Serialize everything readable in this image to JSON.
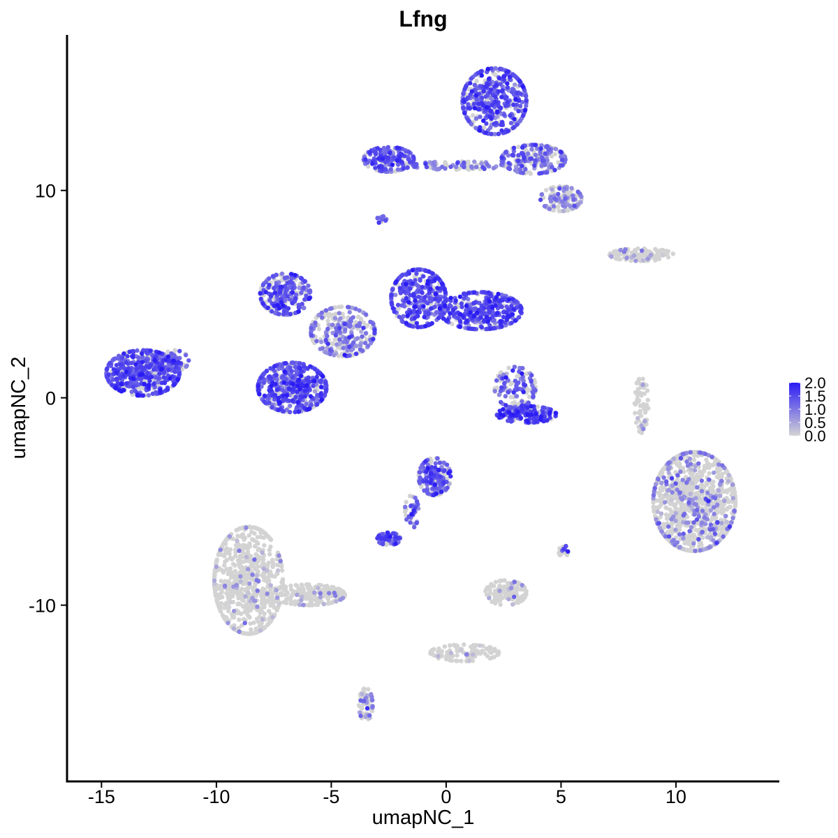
{
  "chart_data": {
    "type": "scatter",
    "title": "Lfng",
    "xlabel": "umapNC_1",
    "ylabel": "umapNC_2",
    "xlim": [
      -16.5,
      14.5
    ],
    "ylim": [
      -18.5,
      17.5
    ],
    "x_ticks": [
      -15,
      -10,
      -5,
      0,
      5,
      10
    ],
    "x_tick_labels": [
      "-15",
      "-10",
      "-5",
      "0",
      "5",
      "10"
    ],
    "y_ticks": [
      -10,
      0,
      10
    ],
    "y_tick_labels": [
      "-10",
      "0",
      "10"
    ],
    "grid": false,
    "legend": {
      "position": "right",
      "type": "colorbar",
      "range": [
        0,
        2
      ],
      "ticks": [
        0,
        0.5,
        1,
        1.5,
        2
      ],
      "tick_labels": [
        "0.0",
        "0.5",
        "1.0",
        "1.5",
        "2.0"
      ],
      "low_color": "#d3d3d3",
      "high_color": "#2b1cf5"
    },
    "clusters": [
      {
        "x": -13.2,
        "y": 1.2,
        "rx": 1.6,
        "ry": 1.1,
        "n": 520,
        "expr": 0.8
      },
      {
        "x": -11.8,
        "y": 1.8,
        "rx": 0.6,
        "ry": 0.5,
        "n": 60,
        "expr": 0.6
      },
      {
        "x": -6.7,
        "y": 0.5,
        "rx": 1.5,
        "ry": 1.2,
        "n": 520,
        "expr": 0.75
      },
      {
        "x": -7.0,
        "y": 5.0,
        "rx": 1.1,
        "ry": 1.0,
        "n": 260,
        "expr": 0.7
      },
      {
        "x": -4.5,
        "y": 3.2,
        "rx": 1.4,
        "ry": 1.2,
        "n": 280,
        "expr": 0.45
      },
      {
        "x": -1.2,
        "y": 4.8,
        "rx": 1.2,
        "ry": 1.4,
        "n": 340,
        "expr": 0.8
      },
      {
        "x": 1.5,
        "y": 4.2,
        "rx": 1.8,
        "ry": 0.9,
        "n": 380,
        "expr": 0.8
      },
      {
        "x": 3.0,
        "y": 0.5,
        "rx": 0.9,
        "ry": 1.0,
        "n": 130,
        "expr": 0.6
      },
      {
        "x": 3.5,
        "y": -0.8,
        "rx": 1.3,
        "ry": 0.4,
        "n": 150,
        "expr": 0.9
      },
      {
        "x": 2.1,
        "y": 14.3,
        "rx": 1.4,
        "ry": 1.6,
        "n": 480,
        "expr": 0.75
      },
      {
        "x": 3.8,
        "y": 11.5,
        "rx": 1.4,
        "ry": 0.7,
        "n": 220,
        "expr": 0.55
      },
      {
        "x": 5.0,
        "y": 9.6,
        "rx": 0.9,
        "ry": 0.6,
        "n": 140,
        "expr": 0.35
      },
      {
        "x": -2.5,
        "y": 11.5,
        "rx": 1.1,
        "ry": 0.6,
        "n": 180,
        "expr": 0.75
      },
      {
        "x": 0.5,
        "y": 11.2,
        "rx": 2.0,
        "ry": 0.2,
        "n": 80,
        "expr": 0.5
      },
      {
        "x": 8.5,
        "y": 6.9,
        "rx": 1.4,
        "ry": 0.3,
        "n": 130,
        "expr": 0.05
      },
      {
        "x": 10.8,
        "y": -5.0,
        "rx": 1.8,
        "ry": 2.4,
        "n": 1000,
        "expr": 0.22
      },
      {
        "x": 8.5,
        "y": -0.3,
        "rx": 0.3,
        "ry": 1.4,
        "n": 60,
        "expr": 0.05
      },
      {
        "x": -0.5,
        "y": -3.8,
        "rx": 0.7,
        "ry": 0.9,
        "n": 180,
        "expr": 0.7
      },
      {
        "x": -2.5,
        "y": -6.8,
        "rx": 0.5,
        "ry": 0.3,
        "n": 70,
        "expr": 0.7
      },
      {
        "x": -1.5,
        "y": -5.5,
        "rx": 0.3,
        "ry": 0.8,
        "n": 40,
        "expr": 0.6
      },
      {
        "x": -8.6,
        "y": -8.8,
        "rx": 1.5,
        "ry": 2.6,
        "n": 720,
        "expr": 0.03
      },
      {
        "x": -6.0,
        "y": -9.5,
        "rx": 1.6,
        "ry": 0.5,
        "n": 200,
        "expr": 0.06
      },
      {
        "x": 2.6,
        "y": -9.4,
        "rx": 0.9,
        "ry": 0.6,
        "n": 120,
        "expr": 0.08
      },
      {
        "x": 0.8,
        "y": -12.3,
        "rx": 1.5,
        "ry": 0.4,
        "n": 110,
        "expr": 0.02
      },
      {
        "x": -3.5,
        "y": -14.8,
        "rx": 0.3,
        "ry": 0.8,
        "n": 70,
        "expr": 0.2
      },
      {
        "x": 5.1,
        "y": -7.4,
        "rx": 0.2,
        "ry": 0.3,
        "n": 25,
        "expr": 0.6
      },
      {
        "x": -2.8,
        "y": 8.6,
        "rx": 0.2,
        "ry": 0.2,
        "n": 14,
        "expr": 0.6
      }
    ]
  }
}
